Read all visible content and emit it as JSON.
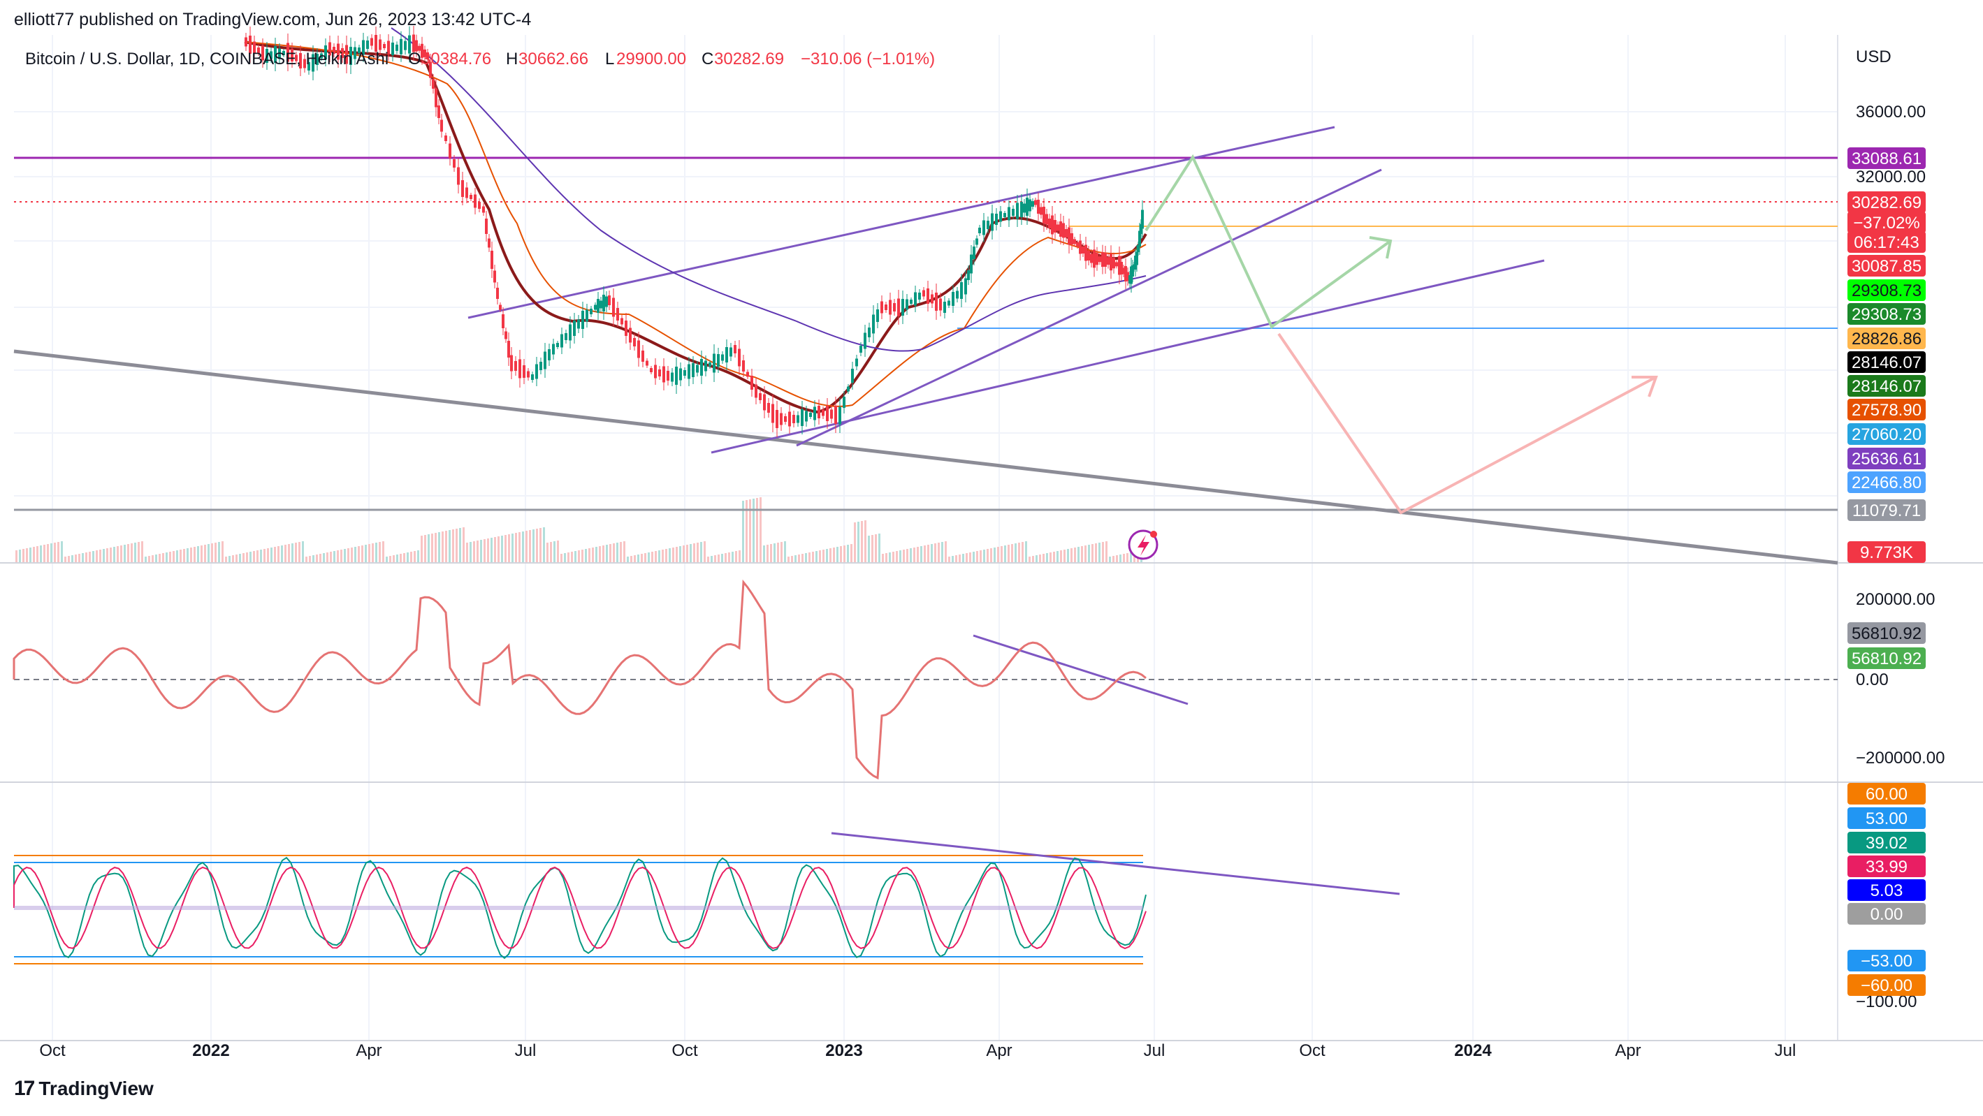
{
  "header": {
    "published": "elliott77 published on TradingView.com, Jun 26, 2023 13:42 UTC-4"
  },
  "legend": {
    "symbol": "Bitcoin / U.S. Dollar, 1D, COINBASE, Heikin Ashi",
    "open_label": "O",
    "open": "30384.76",
    "high_label": "H",
    "high": "30662.66",
    "low_label": "L",
    "low": "29900.00",
    "close_label": "C",
    "close": "30282.69",
    "change": "−310.06 (−1.01%)"
  },
  "price_scale": {
    "currency": "USD",
    "ticks": [
      "36000.00",
      "32000.00"
    ],
    "labels": [
      {
        "text": "33088.61",
        "bg": "#9c27b0",
        "fg": "#ffffff"
      },
      {
        "text": "30282.69",
        "bg": "#f23645",
        "fg": "#ffffff"
      },
      {
        "text": "−37.02%",
        "bg": "#f23645",
        "fg": "#ffffff"
      },
      {
        "text": "06:17:43",
        "bg": "#f23645",
        "fg": "#ffffff"
      },
      {
        "text": "30087.85",
        "bg": "#f23645",
        "fg": "#ffffff"
      },
      {
        "text": "29308.73",
        "bg": "#00ff00",
        "fg": "#131722"
      },
      {
        "text": "29308.73",
        "bg": "#1b8a2b",
        "fg": "#ffffff"
      },
      {
        "text": "28826.86",
        "bg": "#ffb74d",
        "fg": "#131722"
      },
      {
        "text": "28146.07",
        "bg": "#000000",
        "fg": "#ffffff"
      },
      {
        "text": "28146.07",
        "bg": "#1b7a1b",
        "fg": "#ffffff"
      },
      {
        "text": "27578.90",
        "bg": "#e65100",
        "fg": "#ffffff"
      },
      {
        "text": "27060.20",
        "bg": "#26a4e0",
        "fg": "#ffffff"
      },
      {
        "text": "25636.61",
        "bg": "#7e3fbf",
        "fg": "#ffffff"
      },
      {
        "text": "22466.80",
        "bg": "#4da3ff",
        "fg": "#ffffff"
      },
      {
        "text": "11079.71",
        "bg": "#9598a1",
        "fg": "#ffffff"
      },
      {
        "text": "9.773K",
        "bg": "#f23645",
        "fg": "#ffffff"
      }
    ]
  },
  "osc1_scale": {
    "ticks": [
      "200000.00",
      "0.00",
      "−200000.00"
    ],
    "labels": [
      {
        "text": "56810.92",
        "bg": "#9598a1",
        "fg": "#131722"
      },
      {
        "text": "56810.92",
        "bg": "#4caf50",
        "fg": "#ffffff"
      }
    ]
  },
  "osc2_scale": {
    "ticks": [
      "−100.00"
    ],
    "labels": [
      {
        "text": "60.00",
        "bg": "#f57c00",
        "fg": "#ffffff"
      },
      {
        "text": "53.00",
        "bg": "#2196f3",
        "fg": "#ffffff"
      },
      {
        "text": "39.02",
        "bg": "#089981",
        "fg": "#ffffff"
      },
      {
        "text": "33.99",
        "bg": "#e91e63",
        "fg": "#ffffff"
      },
      {
        "text": "5.03",
        "bg": "#0000ff",
        "fg": "#ffffff"
      },
      {
        "text": "0.00",
        "bg": "#9e9e9e",
        "fg": "#ffffff"
      },
      {
        "text": "−53.00",
        "bg": "#2196f3",
        "fg": "#ffffff"
      },
      {
        "text": "−60.00",
        "bg": "#f57c00",
        "fg": "#ffffff"
      }
    ]
  },
  "time_axis": [
    "Oct",
    "2022",
    "Apr",
    "Jul",
    "Oct",
    "2023",
    "Apr",
    "Jul",
    "Oct",
    "2024",
    "Apr",
    "Jul"
  ],
  "time_axis_bold": [
    "2022",
    "2023",
    "2024"
  ],
  "footer": {
    "brand": "TradingView"
  },
  "icons": {
    "lightning": "lightning-icon",
    "logo": "tradingview-logo-icon"
  }
}
